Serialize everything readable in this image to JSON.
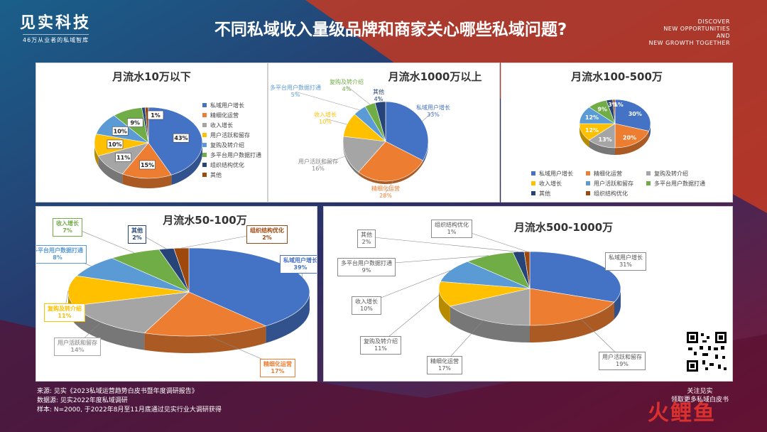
{
  "header": {
    "logo": "见实科技",
    "slogan": "46万从业者的私域智库",
    "title": "不同私域收入量级品牌和商家关心哪些私域问题?",
    "discover": [
      "DISCOVER",
      "NEW OPPORTUNITIES",
      "AND",
      "NEW GROWTH TOGETHER"
    ]
  },
  "colors": {
    "blue": "#4472c4",
    "orange": "#ed7d31",
    "gray": "#a5a5a5",
    "yellow": "#ffc000",
    "lightblue": "#5b9bd5",
    "green": "#70ad47",
    "navy": "#264478",
    "brown": "#9e480e"
  },
  "chart_data": [
    {
      "type": "pie",
      "title": "月流水10万以下",
      "slices": [
        {
          "name": "私域用户增长",
          "value": 43,
          "label": "43%",
          "color": "#4472c4"
        },
        {
          "name": "精细化运营",
          "value": 15,
          "label": "15%",
          "color": "#ed7d31"
        },
        {
          "name": "收入增长",
          "value": 11,
          "label": "11%",
          "color": "#a5a5a5"
        },
        {
          "name": "用户活跃和留存",
          "value": 10,
          "label": "10%",
          "color": "#ffc000"
        },
        {
          "name": "复购及转介绍",
          "value": 10,
          "label": "10%",
          "color": "#5b9bd5"
        },
        {
          "name": "多平台用户数据打通",
          "value": 9,
          "label": "9%",
          "color": "#70ad47"
        },
        {
          "name": "组织结构优化",
          "value": 1,
          "label": "",
          "color": "#264478"
        },
        {
          "name": "其他",
          "value": 1,
          "label": "1%",
          "color": "#9e480e"
        }
      ],
      "legend": [
        "私域用户增长",
        "精细化运营",
        "收入增长",
        "用户活跃和留存",
        "复购及转介绍",
        "多平台用户数据打通",
        "组织结构优化",
        "其他"
      ]
    },
    {
      "type": "pie",
      "title": "月流水1000万以上",
      "slices": [
        {
          "name": "私域用户增长",
          "value": 33,
          "label": "33%",
          "color": "#4472c4"
        },
        {
          "name": "精细化运营",
          "value": 28,
          "label": "28%",
          "color": "#ed7d31"
        },
        {
          "name": "用户活跃和留存",
          "value": 16,
          "label": "16%",
          "color": "#a5a5a5"
        },
        {
          "name": "收入增长",
          "value": 10,
          "label": "10%",
          "color": "#ffc000"
        },
        {
          "name": "多平台用户数据打通",
          "value": 5,
          "label": "5%",
          "color": "#5b9bd5"
        },
        {
          "name": "复购及转介绍",
          "value": 4,
          "label": "4%",
          "color": "#70ad47"
        },
        {
          "name": "其他",
          "value": 4,
          "label": "4%",
          "color": "#264478"
        }
      ]
    },
    {
      "type": "pie",
      "title": "月流水100-500万",
      "slices": [
        {
          "name": "私域用户增长",
          "value": 30,
          "label": "30%",
          "color": "#4472c4"
        },
        {
          "name": "精细化运营",
          "value": 20,
          "label": "20%",
          "color": "#ed7d31"
        },
        {
          "name": "复购及转介绍",
          "value": 13,
          "label": "13%",
          "color": "#a5a5a5"
        },
        {
          "name": "收入增长",
          "value": 12,
          "label": "12%",
          "color": "#ffc000"
        },
        {
          "name": "用户活跃和留存",
          "value": 12,
          "label": "12%",
          "color": "#5b9bd5"
        },
        {
          "name": "多平台用户数据打通",
          "value": 9,
          "label": "9%",
          "color": "#70ad47"
        },
        {
          "name": "其他",
          "value": 3,
          "label": "3%",
          "color": "#264478"
        },
        {
          "name": "组织结构优化",
          "value": 1,
          "label": "1%",
          "color": "#9e480e"
        }
      ],
      "legend": [
        "私域用户增长",
        "精细化运营",
        "复购及转介绍",
        "收入增长",
        "用户活跃和留存",
        "多平台用户数据打通",
        "其他",
        "组织结构优化"
      ]
    },
    {
      "type": "pie",
      "title": "月流水50-100万",
      "slices": [
        {
          "name": "私域用户增长",
          "value": 39,
          "label": "39%",
          "color": "#4472c4"
        },
        {
          "name": "精细化运营",
          "value": 17,
          "label": "17%",
          "color": "#ed7d31"
        },
        {
          "name": "用户活跃和留存",
          "value": 14,
          "label": "14%",
          "color": "#a5a5a5"
        },
        {
          "name": "复购及转介绍",
          "value": 11,
          "label": "11%",
          "color": "#ffc000"
        },
        {
          "name": "多平台用户数据打通",
          "value": 8,
          "label": "8%",
          "color": "#5b9bd5"
        },
        {
          "name": "收入增长",
          "value": 7,
          "label": "7%",
          "color": "#70ad47"
        },
        {
          "name": "其他",
          "value": 2,
          "label": "2%",
          "color": "#264478"
        },
        {
          "name": "组织结构优化",
          "value": 2,
          "label": "2%",
          "color": "#9e480e"
        }
      ]
    },
    {
      "type": "pie",
      "title": "月流水500-1000万",
      "slices": [
        {
          "name": "私域用户增长",
          "value": 31,
          "label": "31%",
          "color": "#4472c4"
        },
        {
          "name": "用户活跃和留存",
          "value": 19,
          "label": "19%",
          "color": "#ed7d31"
        },
        {
          "name": "精细化运营",
          "value": 17,
          "label": "17%",
          "color": "#a5a5a5"
        },
        {
          "name": "复购及转介绍",
          "value": 11,
          "label": "11%",
          "color": "#ffc000"
        },
        {
          "name": "收入增长",
          "value": 10,
          "label": "10%",
          "color": "#5b9bd5"
        },
        {
          "name": "多平台用户数据打通",
          "value": 9,
          "label": "9%",
          "color": "#70ad47"
        },
        {
          "name": "其他",
          "value": 2,
          "label": "2%",
          "color": "#264478"
        },
        {
          "name": "组织结构优化",
          "value": 1,
          "label": "1%",
          "color": "#9e480e"
        }
      ]
    }
  ],
  "footer": {
    "lines": [
      "来源: 见实《2023私域运营趋势白皮书暨年度调研报告》",
      "数据源: 见实2022年度私域调研",
      "样本: N=2000, 于2022年8月至11月底通过见实行业大调研获得"
    ],
    "follow": [
      "关注见实",
      "领取更多私域白皮书"
    ],
    "watermark": "火鲤鱼"
  }
}
